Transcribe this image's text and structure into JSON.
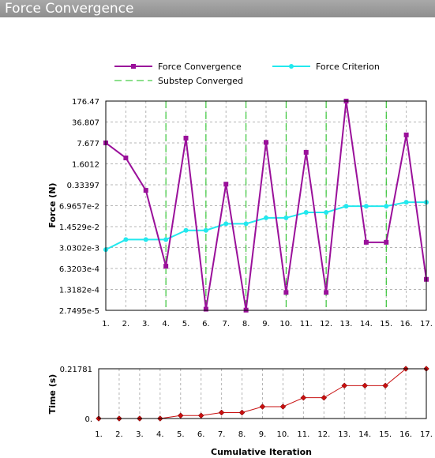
{
  "window": {
    "title": "Force Convergence"
  },
  "colors": {
    "force": "#9a109a",
    "criterion": "#22e8ee",
    "substep": "#18c018",
    "time": "#c81010",
    "grid": "#b4b4b4"
  },
  "chart_data": [
    {
      "type": "line",
      "ylabel": "Force (N)",
      "xlabel": "",
      "scale": "log",
      "legend": "top",
      "grid": true,
      "x": [
        1,
        2,
        3,
        4,
        5,
        6,
        7,
        8,
        9,
        10,
        11,
        12,
        13,
        14,
        15,
        16,
        17
      ],
      "x_tick_labels": [
        "1.",
        "2.",
        "3.",
        "4.",
        "5.",
        "6.",
        "7.",
        "8.",
        "9.",
        "10.",
        "11.",
        "12.",
        "13.",
        "14.",
        "15.",
        "16.",
        "17."
      ],
      "y_tick_labels": [
        "176.47",
        "36.807",
        "7.677",
        "1.6012",
        "0.33397",
        "6.9657e-2",
        "1.4529e-2",
        "3.0302e-3",
        "6.3203e-4",
        "1.3182e-4",
        "2.7495e-5"
      ],
      "ylim": [
        2.7495e-05,
        176.47
      ],
      "series": [
        {
          "name": "Force Convergence",
          "values": [
            7.7,
            2.5,
            0.22,
            0.00075,
            11.0,
            3e-05,
            0.35,
            2.8e-05,
            8.0,
            0.000105,
            3.8,
            0.000105,
            176.47,
            0.0045,
            0.0045,
            14.0,
            0.00028
          ]
        },
        {
          "name": "Force Criterion",
          "values": [
            0.0026,
            0.0055,
            0.0055,
            0.0055,
            0.011,
            0.011,
            0.018,
            0.018,
            0.028,
            0.028,
            0.042,
            0.042,
            0.067,
            0.067,
            0.067,
            0.09,
            0.09
          ]
        }
      ],
      "substep_series_name": "Substep Converged",
      "substep_converged_at": [
        4,
        6,
        8,
        10,
        12,
        15
      ]
    },
    {
      "type": "line",
      "ylabel": "Time (s)",
      "xlabel": "Cumulative Iteration",
      "scale": "linear",
      "grid": true,
      "x": [
        1,
        2,
        3,
        4,
        5,
        6,
        7,
        8,
        9,
        10,
        11,
        12,
        13,
        14,
        15,
        16,
        17
      ],
      "x_tick_labels": [
        "1.",
        "2.",
        "3.",
        "4.",
        "5.",
        "6.",
        "7.",
        "8.",
        "9.",
        "10.",
        "11.",
        "12.",
        "13.",
        "14.",
        "15.",
        "16.",
        "17."
      ],
      "y_tick_labels": [
        "0.21781",
        "0."
      ],
      "ylim": [
        0,
        0.21781
      ],
      "series": [
        {
          "values": [
            0.0,
            0.0,
            0.0,
            0.0,
            0.013,
            0.013,
            0.026,
            0.026,
            0.052,
            0.052,
            0.091,
            0.091,
            0.144,
            0.144,
            0.144,
            0.21781,
            0.21781
          ]
        }
      ]
    }
  ]
}
